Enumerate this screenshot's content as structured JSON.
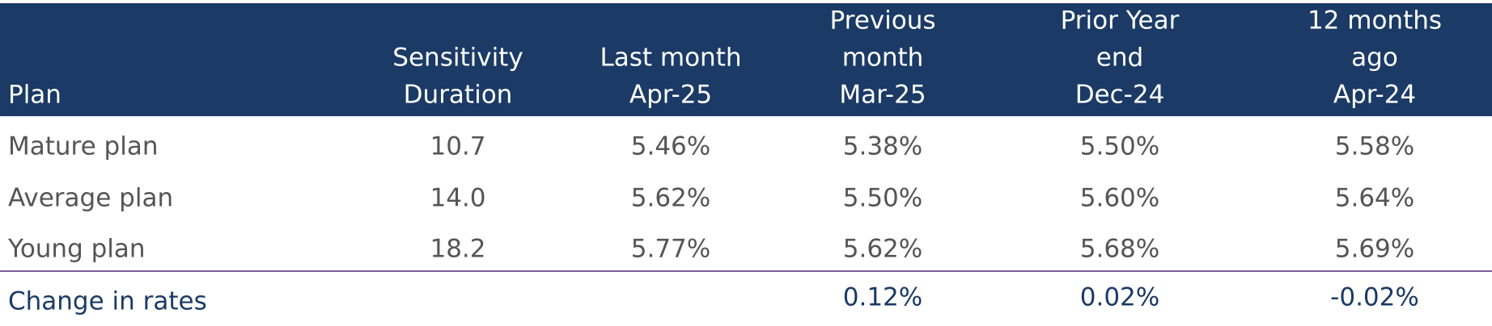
{
  "table": {
    "headers": [
      [
        "Plan"
      ],
      [
        "Sensitivity",
        "Duration"
      ],
      [
        "Last month",
        "Apr-25"
      ],
      [
        "Previous",
        "month",
        "Mar-25"
      ],
      [
        "Prior Year",
        "end",
        "Dec-24"
      ],
      [
        "12 months",
        "ago",
        "Apr-24"
      ]
    ],
    "rows": [
      [
        "Mature plan",
        "10.7",
        "5.46%",
        "5.38%",
        "5.50%",
        "5.58%"
      ],
      [
        "Average plan",
        "14.0",
        "5.62%",
        "5.50%",
        "5.60%",
        "5.64%"
      ],
      [
        "Young plan",
        "18.2",
        "5.77%",
        "5.62%",
        "5.68%",
        "5.69%"
      ]
    ],
    "change_row": {
      "label": "Change in rates",
      "values": [
        "0.12%",
        "0.02%",
        "-0.02%"
      ]
    }
  }
}
